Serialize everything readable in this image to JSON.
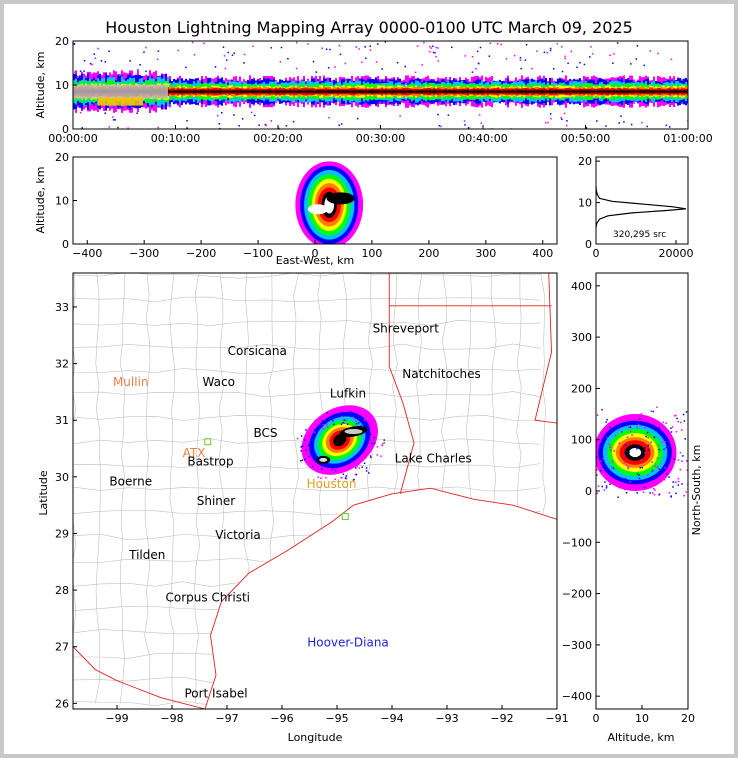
{
  "title": "Houston Lightning Mapping Array 0000-0100 UTC March 09, 2025",
  "chart_data": [
    {
      "type": "heatmap",
      "panel": "time-altitude",
      "xlabel": "",
      "ylabel": "Altitude, km",
      "xticks": [
        "00:00:00",
        "00:10:00",
        "00:20:00",
        "00:30:00",
        "00:40:00",
        "00:50:00",
        "01:00:00"
      ],
      "yticks": [
        "0",
        "10",
        "20"
      ],
      "ylim": [
        0,
        20
      ],
      "core_altitude_km": 8.5
    },
    {
      "type": "heatmap",
      "panel": "east-west-altitude",
      "xlabel": "East-West, km",
      "ylabel": "Altitude, km",
      "xticks": [
        "−400",
        "−300",
        "−200",
        "−100",
        "0",
        "100",
        "200",
        "300",
        "400"
      ],
      "yticks": [
        "0",
        "10",
        "20"
      ],
      "xlim": [
        -425,
        425
      ],
      "ylim": [
        0,
        20
      ]
    },
    {
      "type": "line",
      "panel": "altitude-histogram",
      "xticks": [
        "0",
        "20000"
      ],
      "yticks": [
        "0",
        "10",
        "20"
      ],
      "xlim": [
        0,
        23000
      ],
      "ylim": [
        0,
        21
      ],
      "annotation": "320,295 src",
      "x": [
        0,
        200,
        900,
        3000,
        9000,
        18000,
        22500,
        19000,
        12000,
        4000,
        900,
        300,
        80,
        0
      ],
      "y": [
        4,
        5,
        6,
        6.8,
        7.5,
        8.1,
        8.5,
        9.0,
        9.6,
        10.3,
        11,
        12,
        13,
        14
      ]
    },
    {
      "type": "heatmap",
      "panel": "map",
      "xlabel": "Longitude",
      "ylabel": "Latitude",
      "xticks": [
        "−99",
        "−98",
        "−97",
        "−96",
        "−95",
        "−94",
        "−93",
        "−92",
        "−91"
      ],
      "yticks": [
        "26",
        "27",
        "28",
        "29",
        "30",
        "31",
        "32",
        "33"
      ],
      "xlim": [
        -99.8,
        -91
      ],
      "ylim": [
        25.9,
        33.6
      ]
    },
    {
      "type": "heatmap",
      "panel": "altitude-north-south",
      "xlabel": "Altitude, km",
      "ylabel": "North-South, km",
      "xticks": [
        "0",
        "10",
        "20"
      ],
      "yticks": [
        "−400",
        "−300",
        "−200",
        "−100",
        "0",
        "100",
        "200",
        "300",
        "400"
      ],
      "xlim": [
        0,
        20
      ],
      "ylim": [
        -425,
        425
      ]
    }
  ],
  "map_labels": [
    {
      "text": "Shreveport",
      "lon": -93.75,
      "lat": 32.55,
      "color": "#000000"
    },
    {
      "text": "Corsicana",
      "lon": -96.45,
      "lat": 32.15,
      "color": "#000000"
    },
    {
      "text": "Natchitoches",
      "lon": -93.1,
      "lat": 31.75,
      "color": "#000000"
    },
    {
      "text": "Mullin",
      "lon": -98.75,
      "lat": 31.6,
      "color": "#e8824a"
    },
    {
      "text": "Waco",
      "lon": -97.15,
      "lat": 31.6,
      "color": "#000000"
    },
    {
      "text": "Lufkin",
      "lon": -94.8,
      "lat": 31.4,
      "color": "#000000"
    },
    {
      "text": "BCS",
      "lon": -96.3,
      "lat": 30.7,
      "color": "#000000"
    },
    {
      "text": "ATX",
      "lon": -97.6,
      "lat": 30.35,
      "color": "#e8824a"
    },
    {
      "text": "Bastrop",
      "lon": -97.3,
      "lat": 30.2,
      "color": "#000000"
    },
    {
      "text": "Lake Charles",
      "lon": -93.25,
      "lat": 30.25,
      "color": "#000000"
    },
    {
      "text": "Boerne",
      "lon": -98.75,
      "lat": 29.85,
      "color": "#000000"
    },
    {
      "text": "Houston",
      "lon": -95.1,
      "lat": 29.8,
      "color": "#e0a020"
    },
    {
      "text": "Shiner",
      "lon": -97.2,
      "lat": 29.5,
      "color": "#000000"
    },
    {
      "text": "Victoria",
      "lon": -96.8,
      "lat": 28.9,
      "color": "#000000"
    },
    {
      "text": "Tilden",
      "lon": -98.45,
      "lat": 28.55,
      "color": "#000000"
    },
    {
      "text": "Corpus Christi",
      "lon": -97.35,
      "lat": 27.8,
      "color": "#000000"
    },
    {
      "text": "Hoover-Diana",
      "lon": -94.8,
      "lat": 27.0,
      "color": "#2222dd"
    },
    {
      "text": "Port Isabel",
      "lon": -97.2,
      "lat": 26.1,
      "color": "#000000"
    }
  ],
  "colors": {
    "scale": [
      "#ff00ff",
      "#0000ff",
      "#00c0ff",
      "#00ff00",
      "#ffff00",
      "#ff8000",
      "#ff0000",
      "#a00000",
      "#000000",
      "#ffffff"
    ],
    "border": "#dd2222",
    "counties": "#c0c0c0"
  }
}
